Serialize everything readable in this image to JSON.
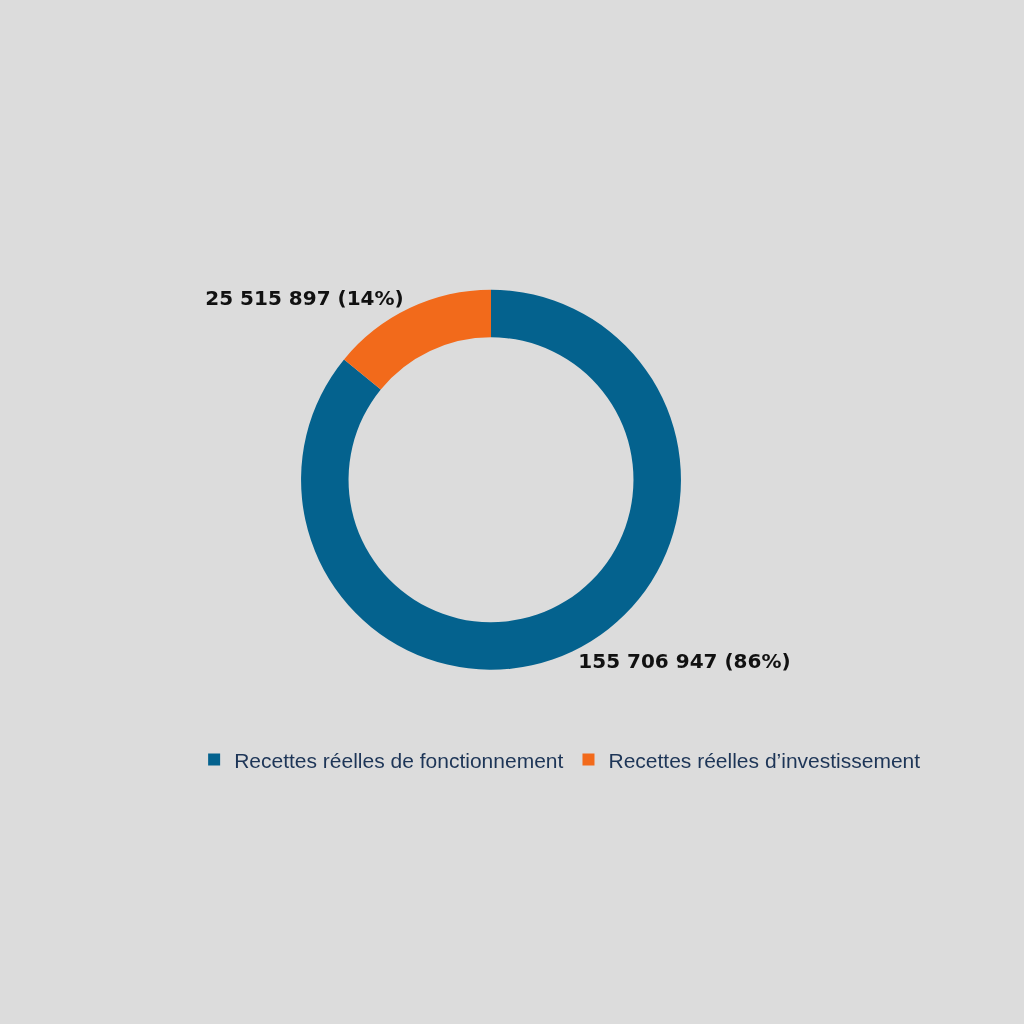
{
  "chart_data": {
    "type": "donut",
    "categories": [
      "Recettes réelles de fonctionnement",
      "Recettes réelles d’investissement"
    ],
    "values": [
      155706947,
      25515897
    ],
    "colors": [
      "#04628e",
      "#f26a1b"
    ],
    "value_labels": [
      "155 706 947 (86%)",
      "25 515 897 (14%)"
    ],
    "legend": "bottom"
  }
}
